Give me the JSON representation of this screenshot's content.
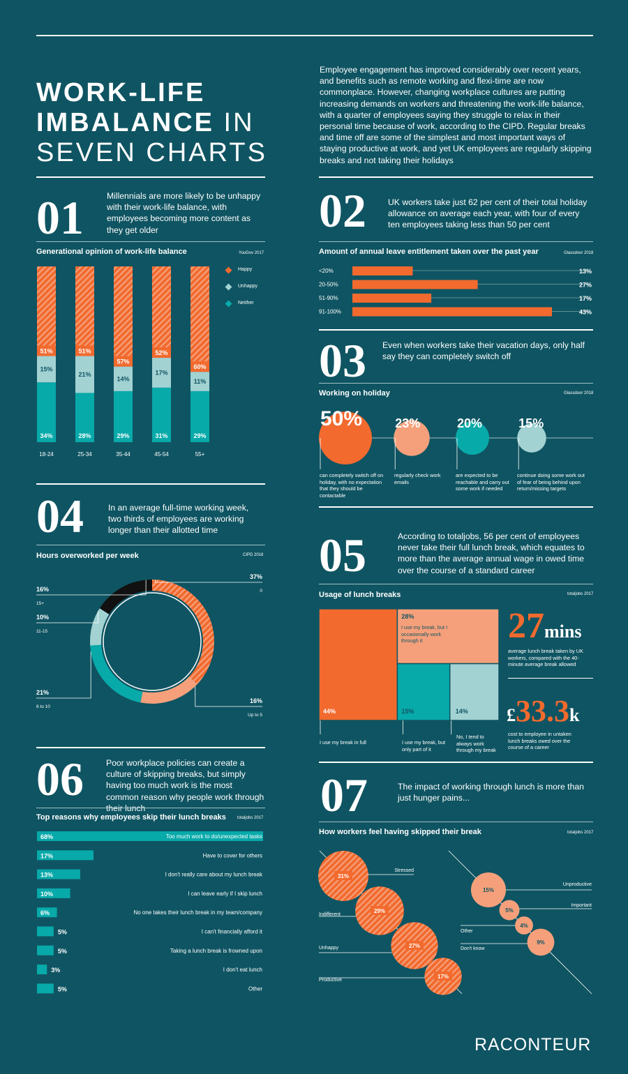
{
  "header": {
    "title_line1": "WORK-LIFE",
    "title_line2_bold": "IMBALANCE",
    "title_line2_light": " IN",
    "title_line3": "SEVEN CHARTS",
    "intro": "Employee engagement has improved considerably over recent years, and benefits such as remote working and flexi-time are now commonplace. However, changing workplace cultures are putting increasing demands on workers and threatening the work-life balance, with a quarter of employees saying they struggle to relax in their personal time because of work, according to the CIPD. Regular breaks and time off are some of the simplest and most important ways of staying productive at work, and yet UK employees are regularly skipping breaks and not taking their holidays"
  },
  "colors": {
    "background": "#0f5462",
    "orange": "#f26a2e",
    "peach": "#f5a07b",
    "teal": "#08a9a9",
    "light_teal": "#a3d2d3",
    "black": "#111111"
  },
  "section1": {
    "number": "01",
    "lead": "Millennials are more likely to be unhappy with their work-life balance, with employees becoming more content as they get older",
    "chart_title": "Generational opinion of work-life balance",
    "source": "YouGov 2017"
  },
  "section2": {
    "number": "02",
    "lead": "UK workers take just 62 per cent of their total holiday allowance on average each year, with four of every ten employees taking less than 50 per cent",
    "chart_title": "Amount of annual leave entitlement taken over the past year",
    "source": "Glassdoor 2018"
  },
  "section3": {
    "number": "03",
    "lead": "Even when workers take their vacation days, only half say they can completely switch off",
    "chart_title": "Working on holiday",
    "source": "Glassdoor 2018"
  },
  "section4": {
    "number": "04",
    "lead": "In an average full-time working week, two thirds of employees are working longer than their allotted time",
    "chart_title": "Hours overworked per week",
    "source": "CIPD 2018"
  },
  "section5": {
    "number": "05",
    "lead": "According to totaljobs, 56 per cent of employees never take their full lunch break, which equates to more than the average annual wage in owed time over the course of a standard career",
    "chart_title": "Usage of lunch breaks",
    "source": "totaljobs 2017",
    "stat1_value": "27",
    "stat1_unit": "mins",
    "stat1_text": "average lunch break taken by UK workers, compared with the 40-minute average break allowed",
    "stat2_prefix": "£",
    "stat2_value": "33.3",
    "stat2_unit": "k",
    "stat2_text": "cost to employee in untaken lunch breaks owed over the course of a career"
  },
  "section6": {
    "number": "06",
    "lead": "Poor workplace policies can create a culture of skipping breaks, but simply having too much work is the most common reason why people work through their lunch",
    "chart_title": "Top reasons why employees skip their lunch breaks",
    "source": "totaljobs 2017"
  },
  "section7": {
    "number": "07",
    "lead": "The impact of working through lunch is more than just hunger pains...",
    "chart_title": "How workers feel having skipped their break",
    "source": "totaljobs 2017"
  },
  "footer": {
    "logo": "RACONTEUR"
  },
  "chart_data": [
    {
      "id": "generational",
      "type": "bar",
      "categories": [
        "18-24",
        "25-34",
        "35-44",
        "45-54",
        "55+"
      ],
      "series": [
        {
          "name": "Happy",
          "values": [
            51,
            51,
            57,
            52,
            60
          ]
        },
        {
          "name": "Unhappy",
          "values": [
            15,
            21,
            14,
            17,
            11
          ]
        },
        {
          "name": "Neither",
          "values": [
            34,
            28,
            29,
            31,
            29
          ]
        }
      ],
      "legend": "right",
      "ylim": [
        0,
        100
      ]
    },
    {
      "id": "annual_leave",
      "type": "bar",
      "orientation": "horizontal",
      "categories": [
        "<20%",
        "20-50%",
        "51-90%",
        "91-100%"
      ],
      "values": [
        13,
        27,
        17,
        43
      ],
      "labels": [
        "13%",
        "27%",
        "17%",
        "43%"
      ]
    },
    {
      "id": "holiday",
      "type": "scatter",
      "values": [
        50,
        23,
        20,
        15
      ],
      "labels": [
        "50%",
        "23%",
        "20%",
        "15%"
      ],
      "descriptions": [
        "can completely switch off on holiday, with no expectation that they should be contactable",
        "regularly check work emails",
        "are expected to be reachable and carry out some work if needed",
        "continue doing some work out of fear of being behind upon return/missing targets"
      ]
    },
    {
      "id": "overworked",
      "type": "pie",
      "categories": [
        "0",
        "Up to 5",
        "6 to 10",
        "11-15",
        "15+"
      ],
      "values": [
        37,
        16,
        21,
        10,
        16
      ],
      "labels": [
        "37%",
        "16%",
        "21%",
        "10%",
        "16%"
      ]
    },
    {
      "id": "lunch_usage",
      "type": "heatmap",
      "categories": [
        "I use my break in full",
        "I use my break, but I occasionally work through it",
        "I use my break, but only part of it",
        "No, I tend to always work through my break"
      ],
      "values": [
        44,
        28,
        15,
        14
      ],
      "labels": [
        "44%",
        "28%",
        "15%",
        "14%"
      ]
    },
    {
      "id": "skip_reasons",
      "type": "bar",
      "orientation": "horizontal",
      "categories": [
        "Too much work to do/unexpected tasks",
        "Have to cover for others",
        "I don't really care about my lunch break",
        "I can leave early if I skip lunch",
        "No one takes their lunch break in my team/company",
        "I can't financially afford it",
        "Taking a lunch break is frowned upon",
        "I don't eat lunch",
        "Other"
      ],
      "values": [
        68,
        17,
        13,
        10,
        6,
        5,
        5,
        3,
        5
      ],
      "labels": [
        "68%",
        "17%",
        "13%",
        "10%",
        "6%",
        "5%",
        "5%",
        "3%",
        "5%"
      ]
    },
    {
      "id": "feelings",
      "type": "scatter",
      "series": [
        {
          "categories": [
            "Stressed",
            "Indifferent",
            "Unhappy",
            "Productive"
          ],
          "values": [
            31,
            29,
            27,
            17
          ],
          "labels": [
            "31%",
            "29%",
            "27%",
            "17%"
          ]
        },
        {
          "categories": [
            "Unproductive",
            "Important",
            "Other",
            "Don't know"
          ],
          "values": [
            15,
            5,
            4,
            9
          ],
          "labels": [
            "15%",
            "5%",
            "4%",
            "9%"
          ]
        }
      ]
    }
  ]
}
